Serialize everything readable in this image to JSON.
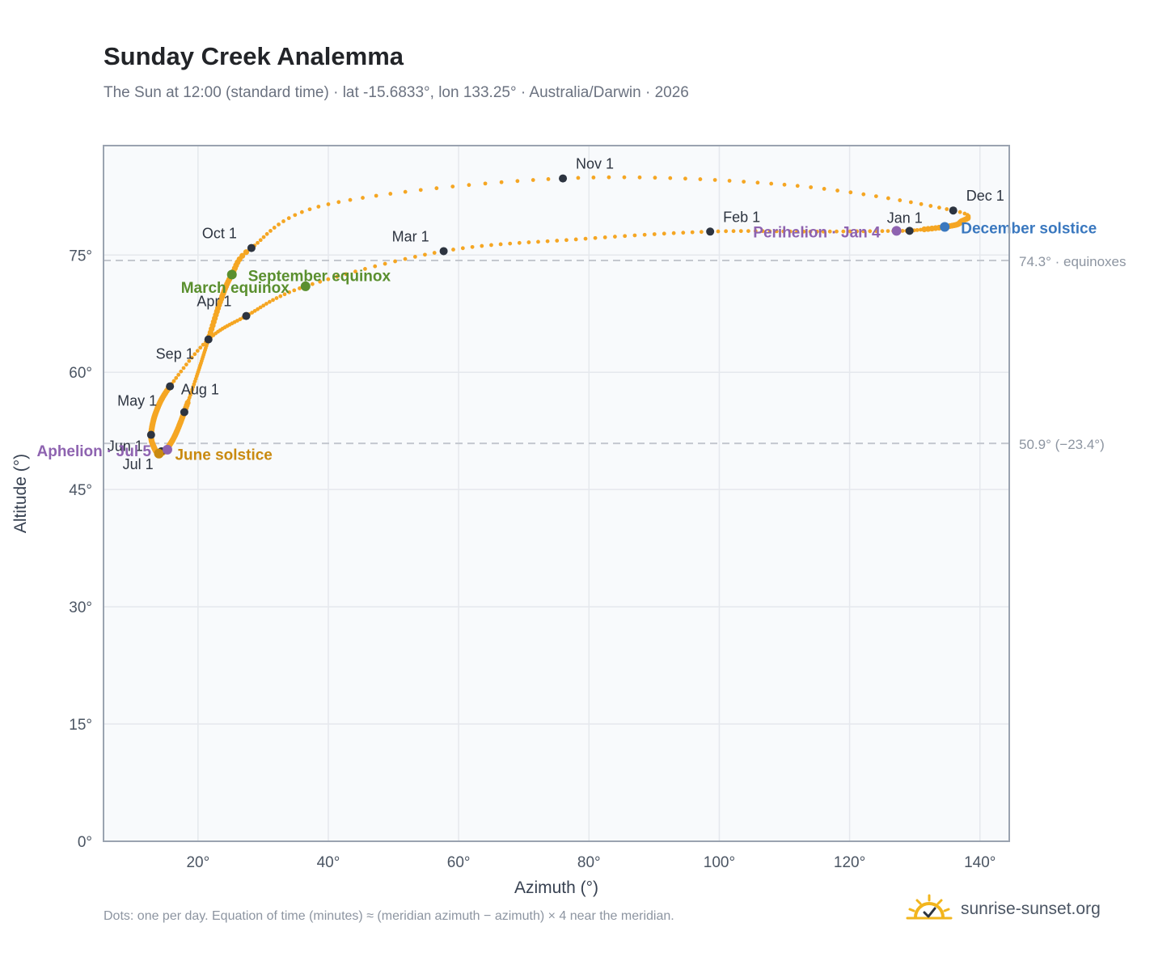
{
  "header": {
    "title": "Sunday Creek Analemma",
    "subtitle": "The Sun at 12:00 (standard time) · lat -15.6833°, lon 133.25° · Australia/Darwin · 2026"
  },
  "footer": {
    "note": "Dots: one per day. Equation of time (minutes) ≈ (meridian azimuth − azimuth) × 4 near the meridian.",
    "brand": "sunrise-sunset.org"
  },
  "colors": {
    "curve": "#f5a623",
    "month_marker": "#2d3440",
    "equinox": "#5a8f2e",
    "june_solstice": "#c98a10",
    "december_solstice": "#3a78bf",
    "apsis": "#8e63b0",
    "reference_line": "#c4c8cf",
    "plot_bg": "#f8fafc",
    "grid": "#e5e8ed"
  },
  "chart_data": {
    "type": "scatter",
    "title": "Sunday Creek Analemma",
    "xlabel": "Azimuth (°)",
    "ylabel": "Altitude (°)",
    "xlim": [
      5.5,
      144.5
    ],
    "ylim": [
      0,
      89
    ],
    "xticks": [
      20,
      40,
      60,
      80,
      100,
      120,
      140
    ],
    "yticks": [
      0,
      15,
      30,
      45,
      60,
      75
    ],
    "grid": true,
    "tick_suffix": "°",
    "reference_lines": [
      {
        "y": 74.3,
        "label": "74.3° · equinoxes"
      },
      {
        "y": 50.9,
        "label": "50.9° (−23.4°)"
      }
    ],
    "path_anchors": [
      {
        "day": 0,
        "az": 129.2,
        "alt": 78.1
      },
      {
        "day": 16,
        "az": 115.0,
        "alt": 78.0
      },
      {
        "day": 31,
        "az": 98.6,
        "alt": 78.0
      },
      {
        "day": 45,
        "az": 78.0,
        "alt": 77.0
      },
      {
        "day": 59,
        "az": 57.7,
        "alt": 75.5
      },
      {
        "day": 74,
        "az": 36.5,
        "alt": 71.0
      },
      {
        "day": 90,
        "az": 27.4,
        "alt": 67.2
      },
      {
        "day": 105,
        "az": 21.6,
        "alt": 64.2
      },
      {
        "day": 120,
        "az": 15.7,
        "alt": 58.2
      },
      {
        "day": 135,
        "az": 13.6,
        "alt": 55.0
      },
      {
        "day": 151,
        "az": 12.8,
        "alt": 52.0
      },
      {
        "day": 162,
        "az": 13.3,
        "alt": 50.3
      },
      {
        "day": 172,
        "az": 14.0,
        "alt": 49.6
      },
      {
        "day": 181,
        "az": 15.0,
        "alt": 50.0
      },
      {
        "day": 196,
        "az": 16.4,
        "alt": 51.8
      },
      {
        "day": 212,
        "az": 17.9,
        "alt": 54.9
      },
      {
        "day": 226,
        "az": 19.8,
        "alt": 59.5
      },
      {
        "day": 243,
        "az": 21.6,
        "alt": 64.2
      },
      {
        "day": 254,
        "az": 23.4,
        "alt": 69.0
      },
      {
        "day": 265,
        "az": 25.2,
        "alt": 72.5
      },
      {
        "day": 273,
        "az": 28.2,
        "alt": 75.9
      },
      {
        "day": 288,
        "az": 40.0,
        "alt": 81.5
      },
      {
        "day": 304,
        "az": 76.0,
        "alt": 84.8
      },
      {
        "day": 319,
        "az": 110.0,
        "alt": 84.0
      },
      {
        "day": 334,
        "az": 135.9,
        "alt": 80.7
      },
      {
        "day": 345,
        "az": 137.0,
        "alt": 79.2
      },
      {
        "day": 354,
        "az": 134.6,
        "alt": 78.6
      },
      {
        "day": 365,
        "az": 129.2,
        "alt": 78.1
      }
    ],
    "thick_segments": [
      [
        120,
        216
      ],
      [
        243,
        273
      ],
      [
        340,
        360
      ]
    ],
    "month_markers": [
      {
        "label": "Jan 1",
        "az": 129.2,
        "alt": 78.1
      },
      {
        "label": "Feb 1",
        "az": 98.6,
        "alt": 78.0
      },
      {
        "label": "Mar 1",
        "az": 57.7,
        "alt": 75.5
      },
      {
        "label": "Apr 1",
        "az": 27.4,
        "alt": 67.2
      },
      {
        "label": "May 1",
        "az": 15.7,
        "alt": 58.2
      },
      {
        "label": "Jun 1",
        "az": 12.8,
        "alt": 52.0
      },
      {
        "label": "Jul 1",
        "az": 14.4,
        "alt": 49.9
      },
      {
        "label": "Aug 1",
        "az": 17.9,
        "alt": 54.9
      },
      {
        "label": "Sep 1",
        "az": 21.6,
        "alt": 64.2
      },
      {
        "label": "Oct 1",
        "az": 28.2,
        "alt": 75.9
      },
      {
        "label": "Nov 1",
        "az": 76.0,
        "alt": 84.8
      },
      {
        "label": "Dec 1",
        "az": 135.9,
        "alt": 80.7
      }
    ],
    "events": [
      {
        "label": "March equinox",
        "az": 36.5,
        "alt": 71.0,
        "kind": "equinox"
      },
      {
        "label": "September equinox",
        "az": 25.2,
        "alt": 72.5,
        "kind": "equinox"
      },
      {
        "label": "June solstice",
        "az": 14.0,
        "alt": 49.6,
        "kind": "june_solstice"
      },
      {
        "label": "December solstice",
        "az": 134.6,
        "alt": 78.6,
        "kind": "december_solstice"
      },
      {
        "label": "Perihelion · Jan 4",
        "az": 127.2,
        "alt": 78.1,
        "kind": "apsis"
      },
      {
        "label": "Aphelion · Jul 5",
        "az": 15.3,
        "alt": 50.1,
        "kind": "apsis"
      }
    ]
  }
}
